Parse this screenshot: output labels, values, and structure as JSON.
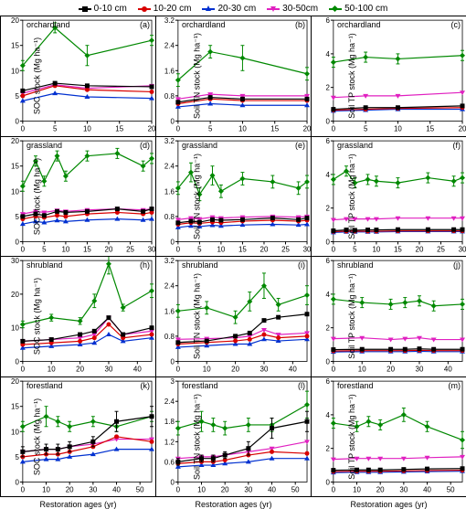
{
  "legend": [
    {
      "label": "0-10 cm",
      "color": "#000000",
      "marker": "square"
    },
    {
      "label": "10-20 cm",
      "color": "#d80000",
      "marker": "circle"
    },
    {
      "label": "20-30 cm",
      "color": "#0030d0",
      "marker": "triangle"
    },
    {
      "label": "30-50cm",
      "color": "#e020c0",
      "marker": "triangledown"
    },
    {
      "label": "50-100 cm",
      "color": "#008800",
      "marker": "diamond"
    }
  ],
  "xlabel": "Restoration ages (yr)",
  "panels": [
    {
      "id": "a",
      "title": "orchardland",
      "letter": "(a)",
      "ylabel": "SOC stock (Mg ha⁻¹)",
      "xlim": [
        0,
        20
      ],
      "ylim": [
        0,
        20
      ],
      "xticks": [
        0,
        5,
        10,
        15,
        20
      ],
      "yticks": [
        0,
        5,
        10,
        15,
        20
      ],
      "xvals": [
        0,
        5,
        10,
        20
      ],
      "series": {
        "s0": [
          6,
          7.5,
          7,
          6.8
        ],
        "s1": [
          5,
          7,
          6.2,
          5.8
        ],
        "s2": [
          4,
          5.5,
          4.8,
          4.5
        ],
        "s3": [
          5.5,
          7.2,
          6.5,
          7
        ],
        "s4": [
          11,
          18.5,
          13,
          16
        ]
      },
      "err": {
        "s4": [
          1,
          1,
          2,
          1
        ]
      }
    },
    {
      "id": "b",
      "title": "orchardland",
      "letter": "(b)",
      "ylabel": "Soil TN stock (Mg ha⁻¹)",
      "xlim": [
        0,
        20
      ],
      "ylim": [
        0,
        3.2
      ],
      "xticks": [
        0,
        5,
        10,
        15,
        20
      ],
      "yticks": [
        0,
        0.8,
        1.6,
        2.4,
        3.2
      ],
      "xvals": [
        0,
        5,
        10,
        20
      ],
      "series": {
        "s0": [
          0.6,
          0.75,
          0.7,
          0.7
        ],
        "s1": [
          0.55,
          0.7,
          0.65,
          0.65
        ],
        "s2": [
          0.45,
          0.55,
          0.5,
          0.5
        ],
        "s3": [
          0.7,
          0.85,
          0.8,
          0.8
        ],
        "s4": [
          1.3,
          2.2,
          2.0,
          1.5
        ]
      },
      "err": {
        "s4": [
          0.2,
          0.2,
          0.4,
          0.2
        ]
      }
    },
    {
      "id": "c",
      "title": "orchardland",
      "letter": "(c)",
      "ylabel": "Soil TP stock (Mg ha⁻¹)",
      "xlim": [
        0,
        20
      ],
      "ylim": [
        0,
        6
      ],
      "xticks": [
        0,
        5,
        10,
        15,
        20
      ],
      "yticks": [
        0,
        2,
        4,
        6
      ],
      "xvals": [
        0,
        5,
        10,
        20
      ],
      "series": {
        "s0": [
          0.7,
          0.8,
          0.8,
          0.9
        ],
        "s1": [
          0.65,
          0.7,
          0.75,
          0.8
        ],
        "s2": [
          0.6,
          0.65,
          0.7,
          0.7
        ],
        "s3": [
          1.4,
          1.5,
          1.5,
          1.7
        ],
        "s4": [
          3.5,
          3.8,
          3.7,
          3.9
        ]
      },
      "err": {
        "s4": [
          0.3,
          0.3,
          0.3,
          0.3
        ]
      }
    },
    {
      "id": "d",
      "title": "grassland",
      "letter": "(d)",
      "ylabel": "SOC stock (Mg ha⁻¹)",
      "xlim": [
        0,
        30
      ],
      "ylim": [
        0,
        20
      ],
      "xticks": [
        0,
        5,
        10,
        15,
        20,
        25,
        30
      ],
      "yticks": [
        0,
        5,
        10,
        15,
        20
      ],
      "xvals": [
        0,
        3,
        5,
        8,
        10,
        15,
        22,
        28,
        30
      ],
      "series": {
        "s0": [
          5,
          5.5,
          5.2,
          6,
          5.8,
          6,
          6.5,
          6,
          6.5
        ],
        "s1": [
          4.5,
          5,
          4.8,
          5.2,
          5,
          5.5,
          5.8,
          5.5,
          5.8
        ],
        "s2": [
          3.5,
          4,
          3.8,
          4.2,
          4,
          4.3,
          4.5,
          4.3,
          4.5
        ],
        "s3": [
          5.5,
          6,
          5.8,
          6.2,
          6,
          6.3,
          6.5,
          6.3,
          6.5
        ],
        "s4": [
          11,
          16,
          12,
          17,
          13,
          17,
          17.5,
          15,
          16.5
        ]
      },
      "err": {
        "s4": [
          1,
          1,
          1,
          1,
          1,
          1,
          1,
          1,
          1
        ]
      }
    },
    {
      "id": "e",
      "title": "grassland",
      "letter": "(e)",
      "ylabel": "Soil TN stock (Mg ha⁻¹)",
      "xlim": [
        0,
        30
      ],
      "ylim": [
        0,
        3.2
      ],
      "xticks": [
        0,
        5,
        10,
        15,
        20,
        25,
        30
      ],
      "yticks": [
        0,
        0.8,
        1.6,
        2.4,
        3.2
      ],
      "xvals": [
        0,
        3,
        5,
        8,
        10,
        15,
        22,
        28,
        30
      ],
      "series": {
        "s0": [
          0.6,
          0.65,
          0.62,
          0.7,
          0.68,
          0.7,
          0.75,
          0.7,
          0.75
        ],
        "s1": [
          0.55,
          0.6,
          0.58,
          0.62,
          0.6,
          0.65,
          0.68,
          0.65,
          0.68
        ],
        "s2": [
          0.45,
          0.5,
          0.48,
          0.52,
          0.5,
          0.53,
          0.55,
          0.53,
          0.55
        ],
        "s3": [
          0.7,
          0.75,
          0.72,
          0.78,
          0.75,
          0.78,
          0.8,
          0.78,
          0.8
        ],
        "s4": [
          1.7,
          2.2,
          1.5,
          2.1,
          1.6,
          2.0,
          1.9,
          1.7,
          1.9
        ]
      },
      "err": {
        "s4": [
          0.2,
          0.3,
          0.2,
          0.3,
          0.2,
          0.2,
          0.2,
          0.2,
          0.2
        ]
      }
    },
    {
      "id": "f",
      "title": "grassland",
      "letter": "(f)",
      "ylabel": "Soil TP stock (Mg ha⁻¹)",
      "xlim": [
        0,
        30
      ],
      "ylim": [
        0,
        6
      ],
      "xticks": [
        0,
        5,
        10,
        15,
        20,
        25,
        30
      ],
      "yticks": [
        0,
        2,
        4,
        6
      ],
      "xvals": [
        0,
        3,
        5,
        8,
        10,
        15,
        22,
        28,
        30
      ],
      "series": {
        "s0": [
          0.65,
          0.7,
          0.68,
          0.7,
          0.7,
          0.72,
          0.72,
          0.72,
          0.72
        ],
        "s1": [
          0.6,
          0.62,
          0.62,
          0.62,
          0.62,
          0.64,
          0.64,
          0.64,
          0.64
        ],
        "s2": [
          0.55,
          0.58,
          0.58,
          0.58,
          0.58,
          0.6,
          0.6,
          0.6,
          0.6
        ],
        "s3": [
          1.3,
          1.35,
          1.35,
          1.35,
          1.35,
          1.4,
          1.4,
          1.4,
          1.4
        ],
        "s4": [
          3.7,
          4.2,
          3.5,
          3.7,
          3.6,
          3.5,
          3.8,
          3.6,
          3.8
        ]
      },
      "err": {
        "s4": [
          0.3,
          0.3,
          0.3,
          0.3,
          0.3,
          0.3,
          0.3,
          0.3,
          0.3
        ]
      }
    },
    {
      "id": "h",
      "title": "shrubland",
      "letter": "(h)",
      "ylabel": "SOC stock (Mg ha⁻¹)",
      "xlim": [
        0,
        45
      ],
      "ylim": [
        0,
        30
      ],
      "xticks": [
        0,
        10,
        20,
        30,
        40
      ],
      "yticks": [
        0,
        10,
        20,
        30
      ],
      "xvals": [
        0,
        10,
        20,
        25,
        30,
        35,
        45
      ],
      "series": {
        "s0": [
          6,
          6.5,
          8,
          9,
          13,
          8,
          10
        ],
        "s1": [
          5,
          5.5,
          6,
          7,
          11,
          7,
          8
        ],
        "s2": [
          4,
          4.5,
          5,
          5.5,
          8,
          6,
          7
        ],
        "s3": [
          6,
          6.5,
          7,
          8,
          13,
          8,
          9
        ],
        "s4": [
          11,
          13,
          12,
          18,
          29,
          16,
          21
        ]
      },
      "err": {
        "s4": [
          1,
          1,
          1,
          2,
          3,
          1,
          2
        ]
      }
    },
    {
      "id": "i",
      "title": "shrubland",
      "letter": "(i)",
      "ylabel": "Soil TN stock (Mg ha⁻¹)",
      "xlim": [
        0,
        45
      ],
      "ylim": [
        0,
        3.2
      ],
      "xticks": [
        0,
        10,
        20,
        30,
        40
      ],
      "yticks": [
        0,
        0.8,
        1.6,
        2.4,
        3.2
      ],
      "xvals": [
        0,
        10,
        20,
        25,
        30,
        35,
        45
      ],
      "series": {
        "s0": [
          0.6,
          0.65,
          0.8,
          0.9,
          1.3,
          1.4,
          1.5
        ],
        "s1": [
          0.55,
          0.6,
          0.65,
          0.7,
          0.85,
          0.75,
          0.8
        ],
        "s2": [
          0.45,
          0.5,
          0.55,
          0.55,
          0.7,
          0.65,
          0.7
        ],
        "s3": [
          0.7,
          0.72,
          0.75,
          0.8,
          1.0,
          0.85,
          0.9
        ],
        "s4": [
          1.6,
          1.7,
          1.4,
          1.9,
          2.4,
          1.8,
          2.1
        ]
      },
      "err": {
        "s4": [
          0.2,
          0.2,
          0.2,
          0.3,
          0.4,
          0.2,
          0.3
        ]
      }
    },
    {
      "id": "j",
      "title": "shrubland",
      "letter": "(j)",
      "ylabel": "Soil TP stock (Mg ha⁻¹)",
      "xlim": [
        0,
        45
      ],
      "ylim": [
        0,
        6
      ],
      "xticks": [
        0,
        10,
        20,
        30,
        40
      ],
      "yticks": [
        0,
        2,
        4,
        6
      ],
      "xvals": [
        0,
        10,
        20,
        25,
        30,
        35,
        45
      ],
      "series": {
        "s0": [
          0.7,
          0.72,
          0.72,
          0.72,
          0.75,
          0.72,
          0.72
        ],
        "s1": [
          0.62,
          0.64,
          0.64,
          0.64,
          0.66,
          0.64,
          0.64
        ],
        "s2": [
          0.56,
          0.58,
          0.58,
          0.58,
          0.6,
          0.58,
          0.58
        ],
        "s3": [
          1.35,
          1.4,
          1.3,
          1.35,
          1.4,
          1.3,
          1.3
        ],
        "s4": [
          3.7,
          3.5,
          3.4,
          3.5,
          3.6,
          3.3,
          3.4
        ]
      },
      "err": {
        "s4": [
          0.3,
          0.3,
          0.3,
          0.3,
          0.3,
          0.3,
          0.3
        ]
      }
    },
    {
      "id": "k",
      "title": "forestland",
      "letter": "(k)",
      "ylabel": "SOC stock (Mg ha⁻¹)",
      "xlim": [
        0,
        55
      ],
      "ylim": [
        0,
        20
      ],
      "xticks": [
        0,
        10,
        20,
        30,
        40,
        50
      ],
      "yticks": [
        0,
        5,
        10,
        15,
        20
      ],
      "xvals": [
        0,
        10,
        15,
        20,
        30,
        40,
        55
      ],
      "series": {
        "s0": [
          6,
          6.5,
          6.5,
          7,
          8,
          12,
          13
        ],
        "s1": [
          5,
          5.5,
          5.5,
          6,
          7,
          9,
          8
        ],
        "s2": [
          4,
          4.5,
          4.5,
          5,
          5.5,
          6.5,
          6.5
        ],
        "s3": [
          6,
          6.5,
          6.5,
          7,
          7.5,
          8.5,
          8.5
        ],
        "s4": [
          11,
          13,
          12,
          11,
          12,
          11,
          13
        ]
      },
      "err": {
        "s0": [
          1,
          1,
          1,
          1,
          1,
          2,
          2
        ],
        "s4": [
          1,
          2,
          1,
          1,
          1,
          1,
          1
        ]
      }
    },
    {
      "id": "l",
      "title": "forestland",
      "letter": "(l)",
      "ylabel": "Soil TN stock (Mg ha⁻¹)",
      "xlim": [
        0,
        55
      ],
      "ylim": [
        0,
        3.0
      ],
      "xticks": [
        0,
        10,
        20,
        30,
        40,
        50
      ],
      "yticks": [
        0,
        0.6,
        1.2,
        1.8,
        2.4,
        3.0
      ],
      "xvals": [
        0,
        10,
        15,
        20,
        30,
        40,
        55
      ],
      "series": {
        "s0": [
          0.6,
          0.7,
          0.7,
          0.8,
          1.0,
          1.6,
          1.8
        ],
        "s1": [
          0.55,
          0.6,
          0.6,
          0.65,
          0.8,
          0.9,
          0.85
        ],
        "s2": [
          0.45,
          0.5,
          0.5,
          0.55,
          0.6,
          0.7,
          0.7
        ],
        "s3": [
          0.7,
          0.75,
          0.75,
          0.8,
          0.9,
          1.0,
          1.2
        ],
        "s4": [
          1.6,
          1.8,
          1.7,
          1.6,
          1.7,
          1.7,
          2.3
        ]
      },
      "err": {
        "s0": [
          0.1,
          0.1,
          0.1,
          0.1,
          0.2,
          0.3,
          0.3
        ],
        "s4": [
          0.2,
          0.3,
          0.2,
          0.2,
          0.2,
          0.2,
          0.4
        ]
      }
    },
    {
      "id": "m",
      "title": "forestland",
      "letter": "(m)",
      "ylabel": "Soil TP stock (Mg ha⁻¹)",
      "xlim": [
        0,
        55
      ],
      "ylim": [
        0,
        6
      ],
      "xticks": [
        0,
        10,
        20,
        30,
        40,
        50
      ],
      "yticks": [
        0,
        2,
        4,
        6
      ],
      "xvals": [
        0,
        10,
        15,
        20,
        30,
        40,
        55
      ],
      "series": {
        "s0": [
          0.7,
          0.72,
          0.72,
          0.72,
          0.75,
          0.78,
          0.8
        ],
        "s1": [
          0.62,
          0.64,
          0.64,
          0.64,
          0.66,
          0.68,
          0.7
        ],
        "s2": [
          0.56,
          0.58,
          0.58,
          0.58,
          0.6,
          0.62,
          0.64
        ],
        "s3": [
          1.35,
          1.4,
          1.4,
          1.4,
          1.4,
          1.45,
          1.5
        ],
        "s4": [
          3.5,
          3.3,
          3.6,
          3.4,
          4.0,
          3.3,
          2.5
        ]
      },
      "err": {
        "s4": [
          0.3,
          0.3,
          0.3,
          0.3,
          0.4,
          0.3,
          0.5
        ]
      }
    }
  ],
  "colors": {
    "s0": "#000000",
    "s1": "#d80000",
    "s2": "#0030d0",
    "s3": "#e020c0",
    "s4": "#008800"
  },
  "markers": {
    "s0": "square",
    "s1": "circle",
    "s2": "triangle",
    "s3": "triangledown",
    "s4": "diamond"
  }
}
